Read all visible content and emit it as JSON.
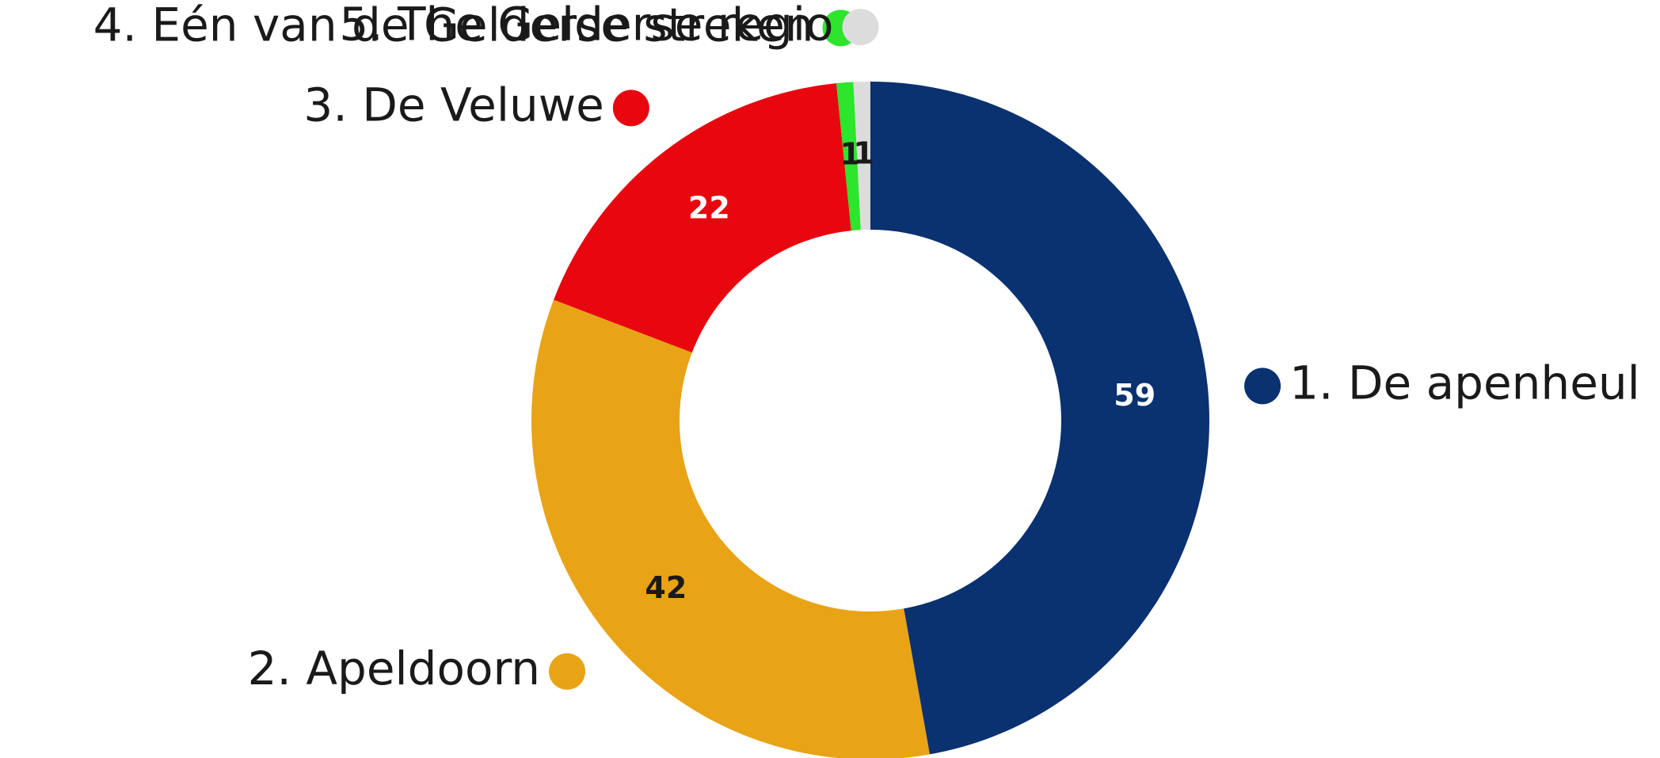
{
  "chart_data": {
    "type": "donut",
    "categories": [
      "1. De apenheul",
      "2. Apeldoorn",
      "3. De Veluwe",
      "4. Eén van de Gelderse streken",
      "5. The Gelderse regio"
    ],
    "values": [
      59,
      42,
      22,
      1,
      1
    ],
    "colors": [
      "#0a3170",
      "#e9a316",
      "#e8070f",
      "#2de52d",
      "#dcdcdc"
    ],
    "show_values": true
  }
}
